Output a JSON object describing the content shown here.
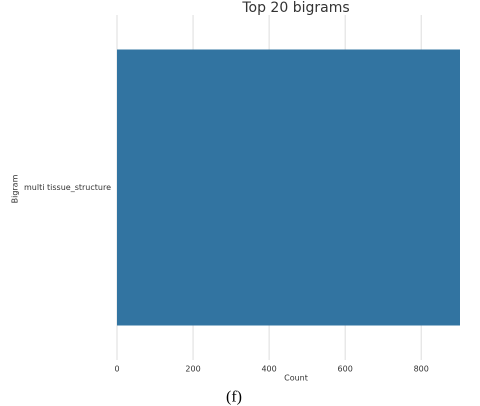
{
  "chart_data": {
    "type": "bar",
    "orientation": "horizontal",
    "title": "Top 20 bigrams",
    "x_label": "Count",
    "y_label": "Bigram",
    "categories": [
      "multi tissue_structure"
    ],
    "values": [
      902
    ],
    "color": "#3274a1",
    "xlim": [
      0,
      902
    ],
    "xticks": [
      0,
      200,
      400,
      600,
      800
    ],
    "grid": true
  },
  "caption": "(f)"
}
